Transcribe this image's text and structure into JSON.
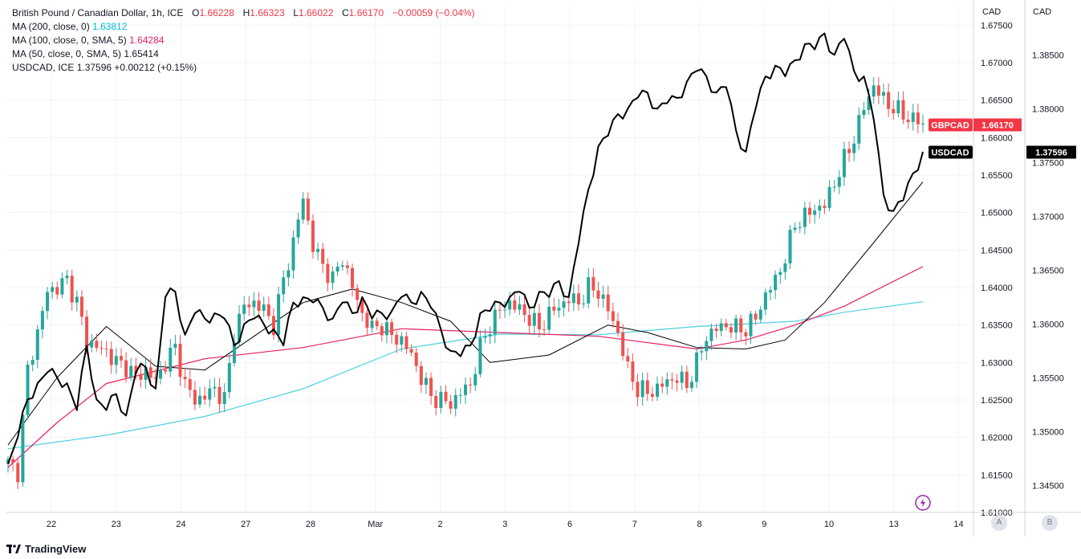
{
  "legend": {
    "main": {
      "name": "British Pound / Canadian Dollar, 1h, ICE",
      "o_label": "O",
      "o": "1.66228",
      "h_label": "H",
      "h": "1.66323",
      "l_label": "L",
      "l": "1.66022",
      "c_label": "C",
      "c": "1.66170",
      "chg": "−0.00059 (−0.04%)"
    },
    "ma200": {
      "label": "MA (200, close, 0)",
      "value": "1.63812"
    },
    "ma100": {
      "label": "MA (100, close, 0, SMA, 5)",
      "value": "1.64284"
    },
    "ma50": {
      "label": "MA (50, close, 0, SMA, 5)",
      "value": "1.65414"
    },
    "usdcad": {
      "label": "USDCAD, ICE",
      "value": "1.37596",
      "chg": "+0.00212 (+0.15%)"
    }
  },
  "axes": {
    "left_axis_header": "CAD",
    "right_axis_header": "CAD",
    "left_ticks": [
      "1.67500",
      "1.67000",
      "1.66500",
      "1.66000",
      "1.65500",
      "1.65000",
      "1.64500",
      "1.64000",
      "1.63500",
      "1.63000",
      "1.62500",
      "1.62000",
      "1.61500",
      "1.61000"
    ],
    "right_ticks": [
      "1.38500",
      "1.38000",
      "1.37500",
      "1.37000",
      "1.36500",
      "1.36000",
      "1.35500",
      "1.35000",
      "1.34500"
    ],
    "x_ticks": [
      "22",
      "23",
      "24",
      "27",
      "28",
      "Mar",
      "2",
      "3",
      "6",
      "7",
      "8",
      "9",
      "10",
      "13",
      "14"
    ],
    "scale_a": "A",
    "scale_b": "B"
  },
  "price_tags": {
    "gbpcad_label": "GBPCAD",
    "gbpcad_value": "1.66170",
    "usdcad_label": "USDCAD",
    "usdcad_value": "1.37596"
  },
  "colors": {
    "up": "#26a69a",
    "down": "#ef5350",
    "usdcad": "#000000",
    "ma200": "#4dd0e1",
    "ma100": "#e91e63",
    "ma50": "#000000",
    "grid": "#f0f3fa"
  },
  "brand": "TradingView",
  "chart_data": {
    "type": "line",
    "series": [
      {
        "name": "GBPCAD",
        "style": "candlestick",
        "close_path": [
          [
            0,
            1.6165
          ],
          [
            2,
            1.6155
          ],
          [
            4,
            1.629
          ],
          [
            6,
            1.634
          ],
          [
            8,
            1.6395
          ],
          [
            10,
            1.64
          ],
          [
            12,
            1.641
          ],
          [
            14,
            1.638
          ],
          [
            16,
            1.633
          ],
          [
            18,
            1.632
          ],
          [
            20,
            1.6315
          ],
          [
            22,
            1.63
          ],
          [
            24,
            1.6295
          ],
          [
            26,
            1.628
          ],
          [
            28,
            1.629
          ],
          [
            30,
            1.6275
          ],
          [
            32,
            1.63
          ],
          [
            34,
            1.632
          ],
          [
            36,
            1.627
          ],
          [
            38,
            1.625
          ],
          [
            40,
            1.6255
          ],
          [
            42,
            1.6265
          ],
          [
            44,
            1.625
          ],
          [
            46,
            1.634
          ],
          [
            48,
            1.6375
          ],
          [
            50,
            1.638
          ],
          [
            52,
            1.637
          ],
          [
            54,
            1.635
          ],
          [
            56,
            1.641
          ],
          [
            58,
            1.646
          ],
          [
            60,
            1.652
          ],
          [
            62,
            1.6455
          ],
          [
            64,
            1.643
          ],
          [
            66,
            1.641
          ],
          [
            68,
            1.644
          ],
          [
            70,
            1.64
          ],
          [
            72,
            1.6365
          ],
          [
            74,
            1.6345
          ],
          [
            76,
            1.635
          ],
          [
            78,
            1.6335
          ],
          [
            80,
            1.633
          ],
          [
            82,
            1.631
          ],
          [
            84,
            1.628
          ],
          [
            86,
            1.6255
          ],
          [
            88,
            1.625
          ],
          [
            90,
            1.6245
          ],
          [
            92,
            1.626
          ],
          [
            94,
            1.627
          ],
          [
            96,
            1.632
          ],
          [
            98,
            1.635
          ],
          [
            100,
            1.637
          ],
          [
            102,
            1.638
          ],
          [
            104,
            1.637
          ],
          [
            106,
            1.636
          ],
          [
            108,
            1.6345
          ],
          [
            110,
            1.6365
          ],
          [
            112,
            1.6375
          ],
          [
            114,
            1.6385
          ],
          [
            116,
            1.638
          ],
          [
            118,
            1.64
          ],
          [
            120,
            1.6395
          ],
          [
            122,
            1.637
          ],
          [
            124,
            1.634
          ],
          [
            126,
            1.629
          ],
          [
            128,
            1.6265
          ],
          [
            130,
            1.626
          ],
          [
            132,
            1.6265
          ],
          [
            134,
            1.6275
          ],
          [
            136,
            1.628
          ],
          [
            138,
            1.627
          ],
          [
            140,
            1.63
          ],
          [
            142,
            1.6335
          ],
          [
            144,
            1.6345
          ],
          [
            146,
            1.635
          ],
          [
            148,
            1.6345
          ],
          [
            150,
            1.6345
          ],
          [
            152,
            1.636
          ],
          [
            154,
            1.639
          ],
          [
            156,
            1.641
          ],
          [
            158,
            1.644
          ],
          [
            160,
            1.6485
          ],
          [
            162,
            1.6495
          ],
          [
            164,
            1.6505
          ],
          [
            166,
            1.651
          ],
          [
            168,
            1.654
          ],
          [
            170,
            1.657
          ],
          [
            172,
            1.66
          ],
          [
            174,
            1.664
          ],
          [
            176,
            1.667
          ],
          [
            178,
            1.665
          ],
          [
            180,
            1.664
          ],
          [
            182,
            1.663
          ],
          [
            184,
            1.6625
          ],
          [
            186,
            1.6617
          ]
        ],
        "last": 1.6617
      },
      {
        "name": "USDCAD",
        "style": "line",
        "last": 1.37596,
        "points": [
          [
            0,
            1.347
          ],
          [
            2,
            1.3495
          ],
          [
            4,
            1.353
          ],
          [
            6,
            1.3545
          ],
          [
            8,
            1.3555
          ],
          [
            10,
            1.355
          ],
          [
            12,
            1.3545
          ],
          [
            14,
            1.352
          ],
          [
            16,
            1.358
          ],
          [
            18,
            1.353
          ],
          [
            20,
            1.352
          ],
          [
            22,
            1.3535
          ],
          [
            24,
            1.3515
          ],
          [
            26,
            1.3555
          ],
          [
            28,
            1.356
          ],
          [
            30,
            1.354
          ],
          [
            32,
            1.3625
          ],
          [
            34,
            1.363
          ],
          [
            36,
            1.359
          ],
          [
            38,
            1.361
          ],
          [
            40,
            1.3605
          ],
          [
            42,
            1.361
          ],
          [
            44,
            1.3605
          ],
          [
            46,
            1.358
          ],
          [
            48,
            1.36
          ],
          [
            50,
            1.3605
          ],
          [
            52,
            1.36
          ],
          [
            54,
            1.3595
          ],
          [
            56,
            1.358
          ],
          [
            58,
            1.362
          ],
          [
            60,
            1.3625
          ],
          [
            62,
            1.362
          ],
          [
            64,
            1.3615
          ],
          [
            66,
            1.3605
          ],
          [
            68,
            1.362
          ],
          [
            70,
            1.361
          ],
          [
            72,
            1.3625
          ],
          [
            74,
            1.3605
          ],
          [
            76,
            1.361
          ],
          [
            78,
            1.3612
          ],
          [
            80,
            1.3625
          ],
          [
            82,
            1.362
          ],
          [
            84,
            1.363
          ],
          [
            86,
            1.3615
          ],
          [
            88,
            1.3595
          ],
          [
            90,
            1.3575
          ],
          [
            92,
            1.357
          ],
          [
            94,
            1.358
          ],
          [
            96,
            1.361
          ],
          [
            98,
            1.3612
          ],
          [
            100,
            1.362
          ],
          [
            102,
            1.3625
          ],
          [
            104,
            1.363
          ],
          [
            106,
            1.3615
          ],
          [
            108,
            1.363
          ],
          [
            110,
            1.3625
          ],
          [
            112,
            1.364
          ],
          [
            114,
            1.3625
          ],
          [
            116,
            1.3675
          ],
          [
            118,
            1.3725
          ],
          [
            120,
            1.3765
          ],
          [
            122,
            1.3775
          ],
          [
            124,
            1.3795
          ],
          [
            126,
            1.38
          ],
          [
            128,
            1.381
          ],
          [
            130,
            1.3815
          ],
          [
            132,
            1.38
          ],
          [
            134,
            1.3805
          ],
          [
            136,
            1.381
          ],
          [
            138,
            1.3825
          ],
          [
            140,
            1.3835
          ],
          [
            142,
            1.383
          ],
          [
            144,
            1.3815
          ],
          [
            146,
            1.382
          ],
          [
            148,
            1.378
          ],
          [
            150,
            1.376
          ],
          [
            152,
            1.38
          ],
          [
            154,
            1.383
          ],
          [
            156,
            1.384
          ],
          [
            158,
            1.383
          ],
          [
            160,
            1.3845
          ],
          [
            162,
            1.386
          ],
          [
            164,
            1.3855
          ],
          [
            166,
            1.387
          ],
          [
            168,
            1.385
          ],
          [
            170,
            1.3865
          ],
          [
            172,
            1.3835
          ],
          [
            174,
            1.383
          ],
          [
            176,
            1.379
          ],
          [
            178,
            1.372
          ],
          [
            180,
            1.3705
          ],
          [
            182,
            1.3715
          ],
          [
            184,
            1.374
          ],
          [
            186,
            1.376
          ]
        ]
      },
      {
        "name": "MA (200, close, 0)",
        "style": "line",
        "points": [
          [
            0,
            1.6185
          ],
          [
            20,
            1.6203
          ],
          [
            40,
            1.6228
          ],
          [
            60,
            1.6265
          ],
          [
            80,
            1.6318
          ],
          [
            100,
            1.6338
          ],
          [
            120,
            1.6337
          ],
          [
            140,
            1.6348
          ],
          [
            160,
            1.6355
          ],
          [
            170,
            1.6367
          ],
          [
            186,
            1.6381
          ]
        ]
      },
      {
        "name": "MA (100, close, 0, SMA, 5)",
        "style": "line",
        "points": [
          [
            0,
            1.616
          ],
          [
            10,
            1.622
          ],
          [
            20,
            1.6272
          ],
          [
            40,
            1.6305
          ],
          [
            60,
            1.632
          ],
          [
            80,
            1.6345
          ],
          [
            100,
            1.634
          ],
          [
            120,
            1.6335
          ],
          [
            140,
            1.6318
          ],
          [
            150,
            1.633
          ],
          [
            160,
            1.635
          ],
          [
            170,
            1.6375
          ],
          [
            186,
            1.6428
          ]
        ]
      },
      {
        "name": "MA (50, close, 0, SMA, 5)",
        "style": "line",
        "points": [
          [
            0,
            1.619
          ],
          [
            10,
            1.628
          ],
          [
            20,
            1.6348
          ],
          [
            30,
            1.6295
          ],
          [
            40,
            1.629
          ],
          [
            50,
            1.6335
          ],
          [
            60,
            1.638
          ],
          [
            70,
            1.6398
          ],
          [
            80,
            1.638
          ],
          [
            90,
            1.6355
          ],
          [
            98,
            1.63
          ],
          [
            110,
            1.631
          ],
          [
            122,
            1.635
          ],
          [
            130,
            1.634
          ],
          [
            140,
            1.632
          ],
          [
            150,
            1.6318
          ],
          [
            158,
            1.633
          ],
          [
            166,
            1.638
          ],
          [
            176,
            1.646
          ],
          [
            186,
            1.6541
          ]
        ]
      }
    ],
    "y_left_range": [
      1.61,
      1.6775
    ],
    "y_right_range": [
      1.3425,
      1.3895
    ],
    "grid": true,
    "legend_placement": "top-left"
  }
}
